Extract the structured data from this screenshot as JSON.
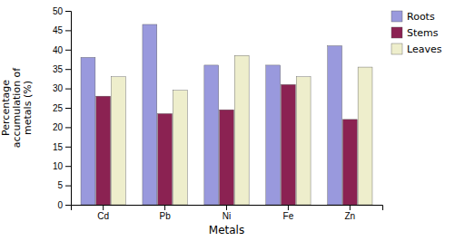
{
  "chart_data": {
    "type": "bar",
    "categories": [
      "Cd",
      "Pb",
      "Ni",
      "Fe",
      "Zn"
    ],
    "series": [
      {
        "name": "Roots",
        "color": "#9999dd",
        "values": [
          38,
          46.5,
          36,
          36,
          41
        ]
      },
      {
        "name": "Stems",
        "color": "#8b2252",
        "values": [
          28,
          23.5,
          24.5,
          31,
          22
        ]
      },
      {
        "name": "Leaves",
        "color": "#eeeecc",
        "values": [
          33,
          29.5,
          38.5,
          33,
          35.5
        ]
      }
    ],
    "xlabel": "Metals",
    "ylabel": "Percentage\naccumulation of\nmetals (%)",
    "ylim": [
      0,
      50
    ],
    "yticks": [
      0,
      5,
      10,
      15,
      20,
      25,
      30,
      35,
      40,
      45,
      50
    ],
    "grid": false,
    "legend": "right"
  }
}
